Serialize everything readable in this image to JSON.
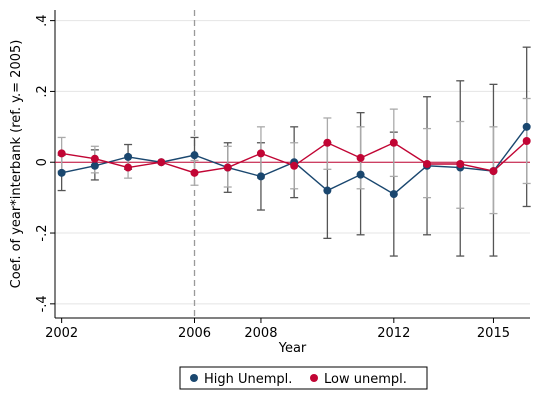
{
  "chart_data": {
    "type": "line",
    "xlabel": "Year",
    "ylabel": "Coef. of year*interbank (ref. y.= 2005)",
    "xlim": [
      2001.8,
      2016.1
    ],
    "ylim": [
      -0.44,
      0.43
    ],
    "xticks": [
      2002,
      2006,
      2008,
      2012,
      2015
    ],
    "xtick_labels": [
      "2002",
      "2006",
      "2008",
      "2012",
      "2015"
    ],
    "yticks": [
      -0.4,
      -0.2,
      0,
      0.2,
      0.4
    ],
    "ytick_labels": [
      "-.4",
      "-.2",
      "0",
      ".2",
      ".4"
    ],
    "reference_year": 2006,
    "reference_line_value": 0,
    "x": [
      2002,
      2003,
      2004,
      2005,
      2006,
      2007,
      2008,
      2009,
      2010,
      2011,
      2012,
      2013,
      2014,
      2015,
      2016
    ],
    "legend_position": "bottom",
    "series": [
      {
        "name": "High Unempl.",
        "color": "#1a476f",
        "ci_color": "#555555",
        "values": [
          -0.03,
          -0.01,
          0.015,
          0.0,
          0.02,
          -0.015,
          -0.04,
          0.0,
          -0.08,
          -0.035,
          -0.09,
          -0.01,
          -0.015,
          -0.025,
          0.1
        ],
        "ci_low": [
          -0.08,
          -0.05,
          -0.02,
          0.0,
          -0.03,
          -0.085,
          -0.135,
          -0.1,
          -0.215,
          -0.205,
          -0.265,
          -0.205,
          -0.265,
          -0.265,
          -0.125
        ],
        "ci_high": [
          0.02,
          0.035,
          0.05,
          0.0,
          0.07,
          0.055,
          0.055,
          0.1,
          0.055,
          0.14,
          0.085,
          0.185,
          0.23,
          0.22,
          0.325
        ]
      },
      {
        "name": "Low unempl.",
        "color": "#c10534",
        "ci_color": "#aaaaaa",
        "values": [
          0.025,
          0.01,
          -0.015,
          0.0,
          -0.03,
          -0.015,
          0.025,
          -0.01,
          0.055,
          0.012,
          0.055,
          -0.005,
          -0.005,
          -0.025,
          0.06
        ],
        "ci_low": [
          -0.025,
          -0.03,
          -0.045,
          0.0,
          -0.065,
          -0.07,
          -0.045,
          -0.075,
          -0.02,
          -0.075,
          -0.04,
          -0.1,
          -0.13,
          -0.145,
          -0.06
        ],
        "ci_high": [
          0.07,
          0.045,
          0.02,
          0.0,
          0.005,
          0.045,
          0.1,
          0.055,
          0.125,
          0.1,
          0.15,
          0.095,
          0.115,
          0.1,
          0.18
        ]
      }
    ]
  }
}
